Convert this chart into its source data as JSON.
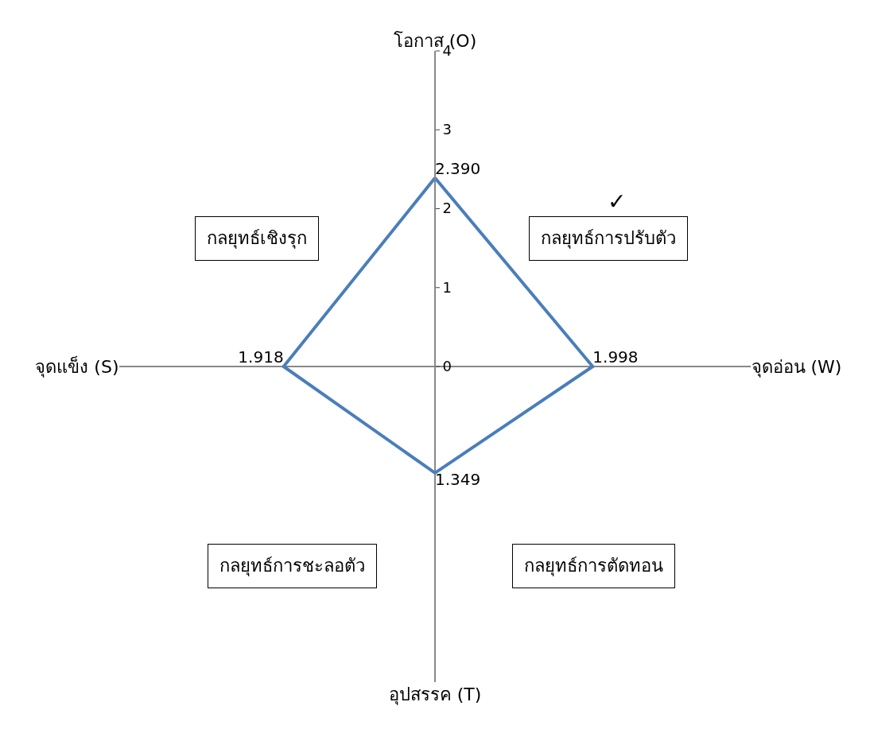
{
  "chart_data": {
    "type": "radar",
    "categories": [
      "โอกาส (O)",
      "จุดอ่อน (W)",
      "อุปสรรค (T)",
      "จุดแข็ง (S)"
    ],
    "series": [
      {
        "color": "#4a7ebb",
        "values": [
          2.39,
          1.998,
          1.349,
          1.918
        ],
        "value_labels": [
          "2.390",
          "1.998",
          "1.349",
          "1.918"
        ]
      }
    ],
    "ylim": [
      0,
      4
    ],
    "yticks": [
      0,
      1,
      2,
      3,
      4
    ],
    "grid": false,
    "marker": "none",
    "line_style": "solid",
    "annotations": [
      "กลยุทธ์เชิงรุก",
      "กลยุทธ์การปรับตัว",
      "กลยุทธ์การชะลอตัว",
      "กลยุทธ์การตัดทอน",
      "✓"
    ]
  }
}
